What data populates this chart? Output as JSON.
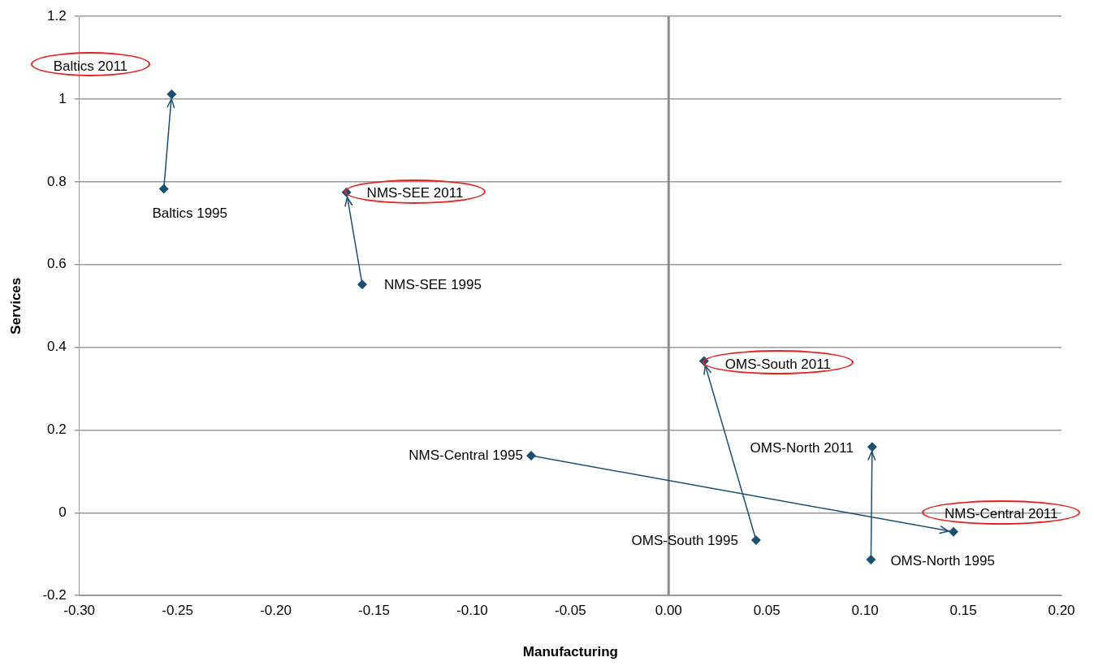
{
  "chart_data": {
    "type": "scatter",
    "xlabel": "Manufacturing",
    "ylabel": "Services",
    "xlim": [
      -0.3,
      0.2
    ],
    "xticks": [
      {
        "value": -0.3,
        "label": "-0.30"
      },
      {
        "value": -0.25,
        "label": "-0.25"
      },
      {
        "value": -0.2,
        "label": "-0.20"
      },
      {
        "value": -0.15,
        "label": "-0.15"
      },
      {
        "value": -0.1,
        "label": "-0.10"
      },
      {
        "value": -0.05,
        "label": "-0.05"
      },
      {
        "value": 0,
        "label": "0.00"
      },
      {
        "value": 0.05,
        "label": "0.05"
      },
      {
        "value": 0.1,
        "label": "0.10"
      },
      {
        "value": 0.15,
        "label": "0.15"
      },
      {
        "value": 0.2,
        "label": "0.20"
      }
    ],
    "ylim": [
      -0.2,
      1.2
    ],
    "yticks": [
      -0.2,
      0,
      0.2,
      0.4,
      0.6,
      0.8,
      1,
      1.2
    ],
    "grid": "y",
    "legend": false,
    "marker": "diamond",
    "line_style": "solid",
    "ref_lines": [
      {
        "axis": "x",
        "value": 0,
        "color": "#8c8c8c"
      }
    ],
    "series": [
      {
        "type": "line",
        "color": "#1a4f72",
        "x": [
          -0.257,
          -0.253
        ],
        "values": [
          0.783,
          1.012
        ]
      },
      {
        "type": "line",
        "color": "#1a4f72",
        "x": [
          -0.156,
          -0.164
        ],
        "values": [
          0.552,
          0.775
        ]
      },
      {
        "type": "line",
        "color": "#1a4f72",
        "x": [
          0.0445,
          0.018
        ],
        "values": [
          -0.066,
          0.367
        ]
      },
      {
        "type": "line",
        "color": "#1a4f72",
        "x": [
          -0.07,
          0.145
        ],
        "values": [
          0.138,
          -0.046
        ]
      },
      {
        "type": "line",
        "color": "#1a4f72",
        "x": [
          0.103,
          0.1036
        ],
        "values": [
          -0.113,
          0.159
        ]
      }
    ],
    "annotations": [
      {
        "text": "Baltics 1995",
        "x": -0.257,
        "y": 0.783
      },
      "Baltics 2011",
      {
        "text": "NMS-SEE 1995",
        "x": -0.156,
        "y": 0.552
      },
      {
        "text": "NMS-SEE 2011",
        "x": -0.164,
        "y": 0.775
      },
      {
        "text": "OMS-South 1995",
        "x": 0.0445,
        "y": -0.066
      },
      {
        "text": "OMS-South 2011",
        "x": 0.018,
        "y": 0.367
      },
      {
        "text": "NMS-Central 1995",
        "x": -0.07,
        "y": 0.138
      },
      {
        "text": "NMS-Central 2011",
        "x": 0.145,
        "y": -0.046
      },
      {
        "text": "OMS-North 1995",
        "x": 0.103,
        "y": -0.113
      },
      {
        "text": "OMS-North 2011",
        "x": 0.1036,
        "y": 0.159
      }
    ]
  }
}
